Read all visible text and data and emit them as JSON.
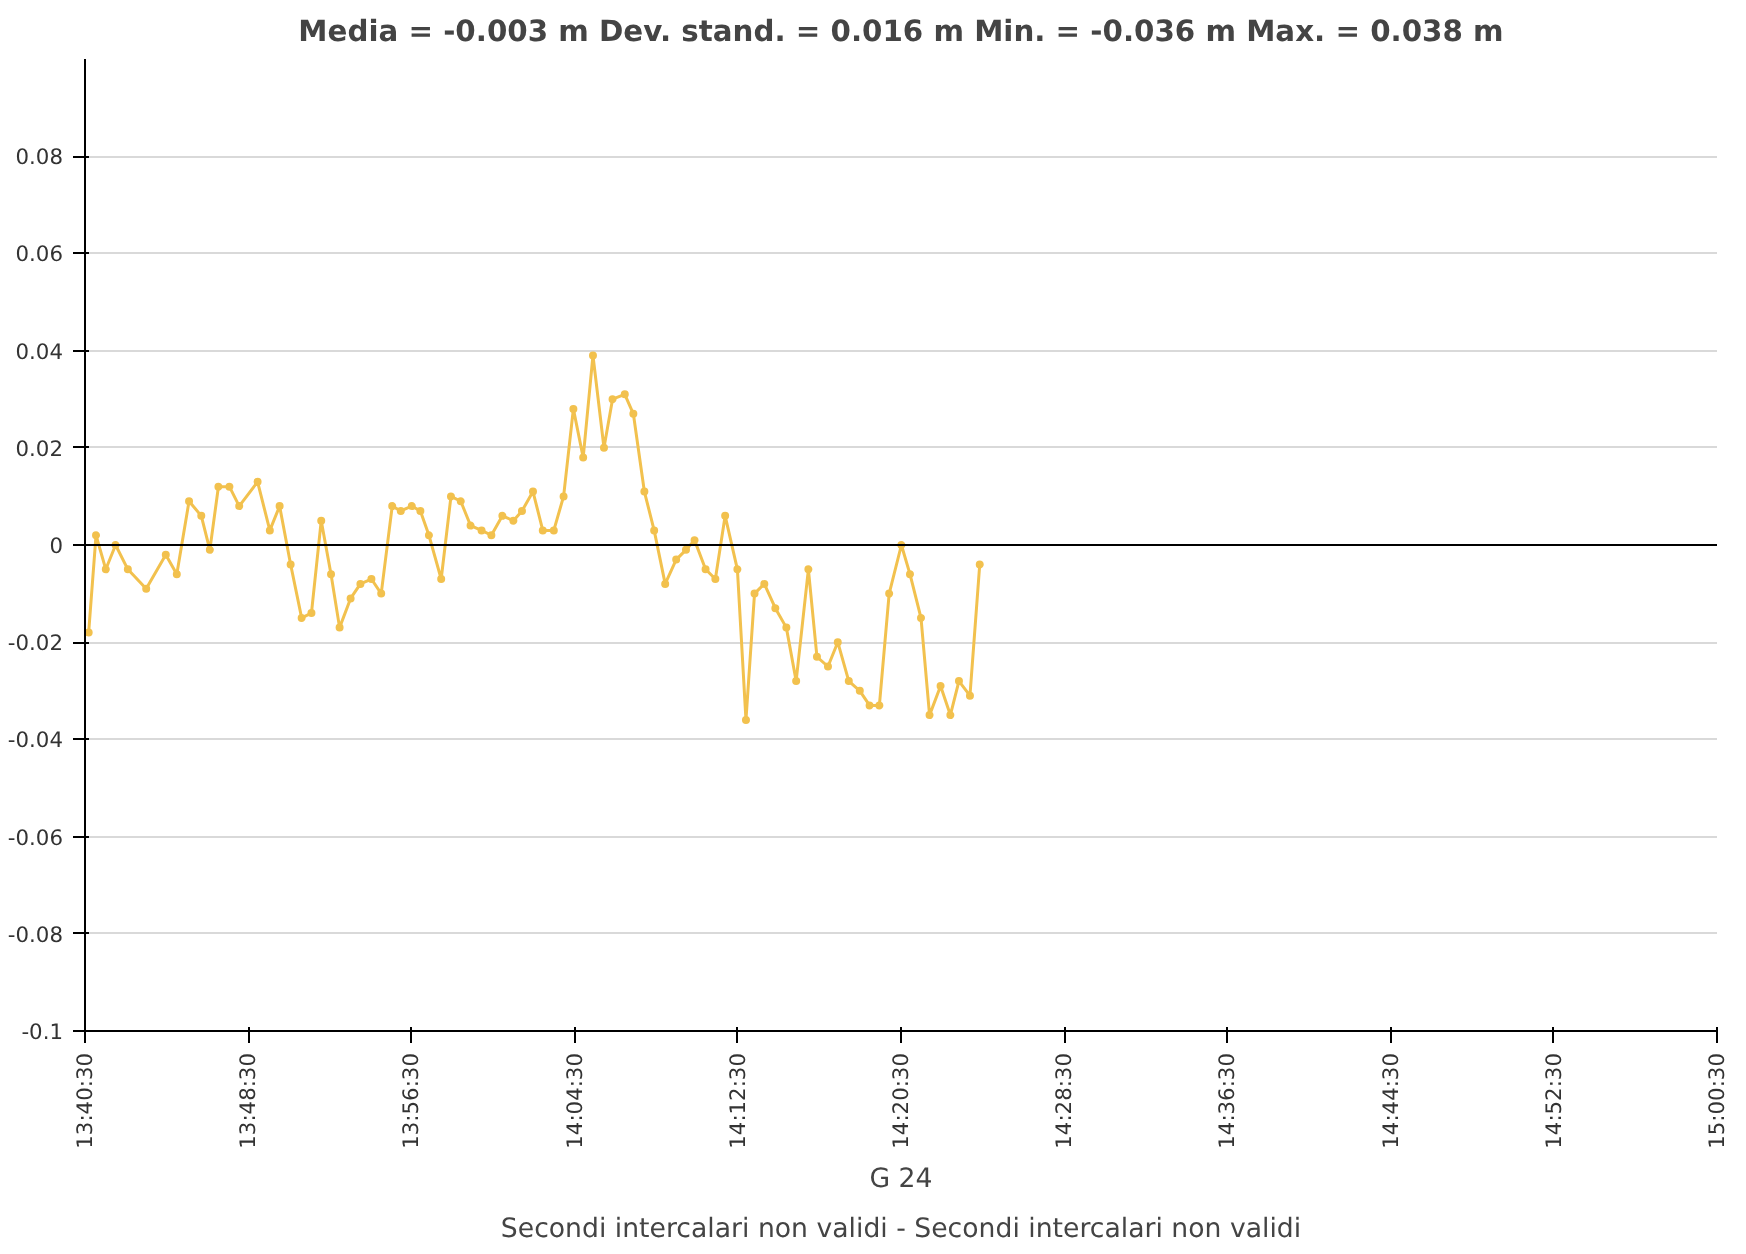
{
  "chart_data": {
    "type": "line",
    "title": "Media = -0.003 m Dev. stand. = 0.016 m Min. = -0.036 m Max. = 0.038 m",
    "xlabel": "G 24",
    "annotations": [
      "Secondi intercalari non validi - Secondi intercalari non validi"
    ],
    "x": [
      13.678,
      13.684,
      13.692,
      13.7,
      13.71,
      13.725,
      13.741,
      13.75,
      13.76,
      13.77,
      13.777,
      13.784,
      13.793,
      13.801,
      13.816,
      13.826,
      13.834,
      13.843,
      13.852,
      13.86,
      13.868,
      13.876,
      13.883,
      13.892,
      13.9,
      13.909,
      13.917,
      13.926,
      13.933,
      13.942,
      13.949,
      13.956,
      13.966,
      13.974,
      13.982,
      13.99,
      13.999,
      14.007,
      14.016,
      14.025,
      14.032,
      14.041,
      14.049,
      14.058,
      14.066,
      14.074,
      14.082,
      14.09,
      14.099,
      14.106,
      14.116,
      14.123,
      14.132,
      14.14,
      14.149,
      14.158,
      14.166,
      14.173,
      14.182,
      14.19,
      14.198,
      14.208,
      14.215,
      14.222,
      14.23,
      14.239,
      14.248,
      14.256,
      14.266,
      14.273,
      14.282,
      14.29,
      14.299,
      14.308,
      14.316,
      14.324,
      14.332,
      14.342,
      14.349,
      14.358,
      14.365,
      14.374,
      14.382,
      14.389,
      14.398,
      14.406
    ],
    "series": [
      {
        "color": "#f2c14e",
        "values": [
          -0.018,
          0.002,
          -0.005,
          0.0,
          -0.005,
          -0.009,
          -0.002,
          -0.006,
          0.009,
          0.006,
          -0.001,
          0.012,
          0.012,
          0.008,
          0.013,
          0.003,
          0.008,
          -0.004,
          -0.015,
          -0.014,
          0.005,
          -0.006,
          -0.017,
          -0.011,
          -0.008,
          -0.007,
          -0.01,
          0.008,
          0.007,
          0.008,
          0.007,
          0.002,
          -0.007,
          0.01,
          0.009,
          0.004,
          0.003,
          0.002,
          0.006,
          0.005,
          0.007,
          0.011,
          0.003,
          0.003,
          0.01,
          0.028,
          0.018,
          0.039,
          0.02,
          0.03,
          0.031,
          0.027,
          0.011,
          0.003,
          -0.008,
          -0.003,
          -0.001,
          0.001,
          -0.005,
          -0.007,
          0.006,
          -0.005,
          -0.036,
          -0.01,
          -0.008,
          -0.013,
          -0.017,
          -0.028,
          -0.005,
          -0.023,
          -0.025,
          -0.02,
          -0.028,
          -0.03,
          -0.033,
          -0.033,
          -0.01,
          0.0,
          -0.006,
          -0.015,
          -0.035,
          -0.029,
          -0.035,
          -0.028,
          -0.031,
          -0.004
        ]
      }
    ],
    "xlim": [
      13.675,
      15.00833
    ],
    "xticks": [
      {
        "value": 13.675,
        "label": "13:40:30"
      },
      {
        "value": 13.80833,
        "label": "13:48:30"
      },
      {
        "value": 13.94167,
        "label": "13:56:30"
      },
      {
        "value": 14.075,
        "label": "14:04:30"
      },
      {
        "value": 14.20833,
        "label": "14:12:30"
      },
      {
        "value": 14.34167,
        "label": "14:20:30"
      },
      {
        "value": 14.475,
        "label": "14:28:30"
      },
      {
        "value": 14.60833,
        "label": "14:36:30"
      },
      {
        "value": 14.74167,
        "label": "14:44:30"
      },
      {
        "value": 14.875,
        "label": "14:52:30"
      },
      {
        "value": 15.00833,
        "label": "15:00:30"
      }
    ],
    "ylim": [
      -0.1,
      0.1
    ],
    "yticks": [
      -0.1,
      -0.08,
      -0.06,
      -0.04,
      -0.02,
      0,
      0.02,
      0.04,
      0.06,
      0.08
    ],
    "ref_lines": [
      {
        "axis": "y",
        "value": 0,
        "color": "#000000"
      }
    ],
    "grid": "y",
    "marker": "circle",
    "line_style": "solid"
  }
}
